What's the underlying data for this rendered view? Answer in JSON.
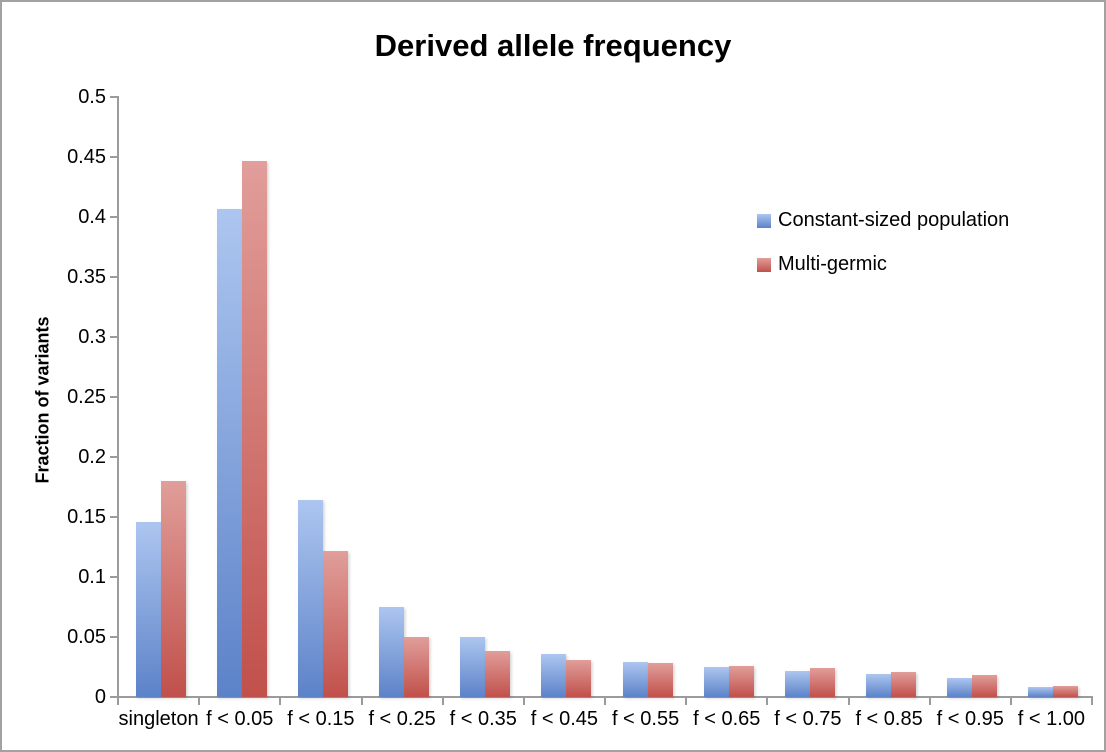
{
  "chart_data": {
    "type": "bar",
    "title": "Derived allele frequency",
    "xlabel": "",
    "ylabel": "Fraction of variants",
    "ylim": [
      0,
      0.5
    ],
    "y_ticks": [
      0,
      0.05,
      0.1,
      0.15,
      0.2,
      0.25,
      0.3,
      0.35,
      0.4,
      0.45,
      0.5
    ],
    "y_tick_labels": [
      "0",
      "0.05",
      "0.1",
      "0.15",
      "0.2",
      "0.25",
      "0.3",
      "0.35",
      "0.4",
      "0.45",
      "0.5"
    ],
    "grid": false,
    "legend_position": "upper-right-inside",
    "categories": [
      "singleton",
      "f < 0.05",
      "f < 0.15",
      "f < 0.25",
      "f < 0.35",
      "f < 0.45",
      "f < 0.55",
      "f < 0.65",
      "f < 0.75",
      "f < 0.85",
      "f < 0.95",
      "f < 1.00"
    ],
    "series": [
      {
        "name": "Constant-sized population",
        "color_top": "#adc6f0",
        "color_bottom": "#5c82c8",
        "values": [
          0.146,
          0.407,
          0.164,
          0.075,
          0.05,
          0.036,
          0.029,
          0.025,
          0.022,
          0.019,
          0.016,
          0.008
        ]
      },
      {
        "name": "Multi-germic",
        "color_top": "#e19e9a",
        "color_bottom": "#c1504b",
        "values": [
          0.18,
          0.447,
          0.122,
          0.05,
          0.038,
          0.031,
          0.028,
          0.026,
          0.024,
          0.021,
          0.018,
          0.009
        ]
      }
    ],
    "colors": {
      "axis": "#9b9b9b",
      "text": "#000000",
      "border": "#a2a2a2"
    }
  }
}
